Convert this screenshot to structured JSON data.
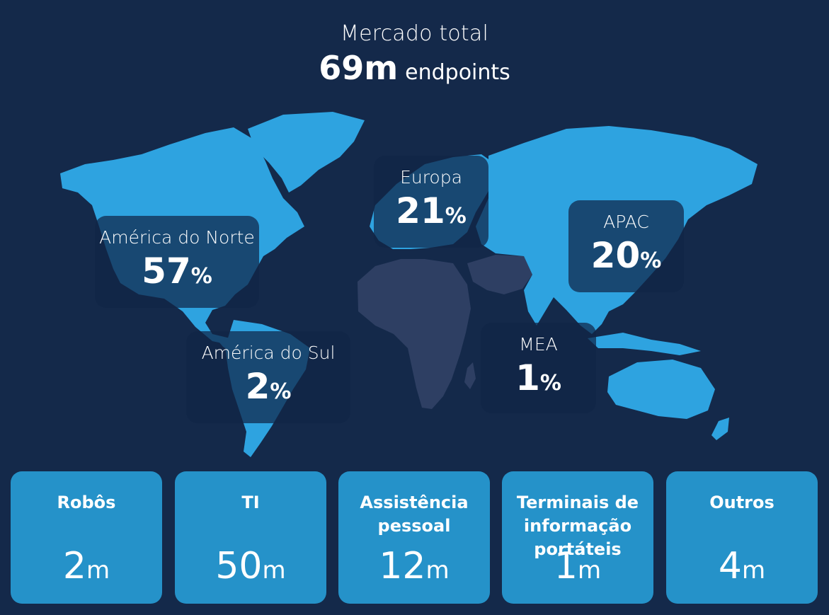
{
  "header": {
    "subtitle": "Mercado total",
    "total_value": "69m",
    "total_unit": "endpoints"
  },
  "colors": {
    "background": "#14294a",
    "land": "#2ea3e0",
    "mea_land": "#2e3f63",
    "card": "#2592c9"
  },
  "regions": [
    {
      "name": "América do Norte",
      "value": "57",
      "unit": "%"
    },
    {
      "name": "Europa",
      "value": "21",
      "unit": "%"
    },
    {
      "name": "APAC",
      "value": "20",
      "unit": "%"
    },
    {
      "name": "América do Sul",
      "value": "2",
      "unit": "%"
    },
    {
      "name": "MEA",
      "value": "1",
      "unit": "%"
    }
  ],
  "segments": [
    {
      "label": "Robôs",
      "value": "2",
      "unit": "m"
    },
    {
      "label": "TI",
      "value": "50",
      "unit": "m"
    },
    {
      "label": "Assistência pessoal",
      "value": "12",
      "unit": "m"
    },
    {
      "label": "Terminais de informação portáteis",
      "value": "1",
      "unit": "m"
    },
    {
      "label": "Outros",
      "value": "4",
      "unit": "m"
    }
  ]
}
